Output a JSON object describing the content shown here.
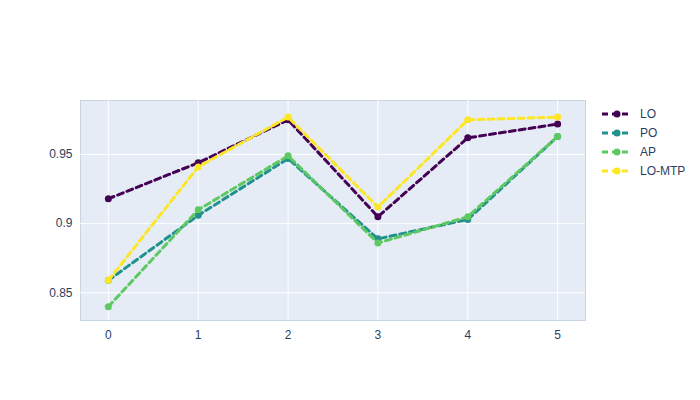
{
  "chart_data": {
    "type": "line",
    "x": [
      0,
      1,
      2,
      3,
      4,
      5
    ],
    "xlim": [
      -0.31,
      5.31
    ],
    "xticks": [
      0,
      1,
      2,
      3,
      4,
      5
    ],
    "ylim": [
      0.83,
      0.989
    ],
    "yticks": [
      0.85,
      0.9,
      0.95
    ],
    "grid": true,
    "legend": "right",
    "marker": "circle",
    "line_style": "dashed",
    "series": [
      {
        "name": "LO",
        "color": "#440154",
        "values": [
          0.918,
          0.944,
          0.975,
          0.905,
          0.962,
          0.972
        ]
      },
      {
        "name": "PO",
        "color": "#21918c",
        "values": [
          0.859,
          0.906,
          0.947,
          0.889,
          0.903,
          0.963
        ]
      },
      {
        "name": "AP",
        "color": "#5ec962",
        "values": [
          0.84,
          0.91,
          0.949,
          0.886,
          0.905,
          0.963
        ]
      },
      {
        "name": "LO-MTP",
        "color": "#fde725",
        "values": [
          0.859,
          0.941,
          0.977,
          0.912,
          0.975,
          0.977
        ]
      }
    ]
  }
}
